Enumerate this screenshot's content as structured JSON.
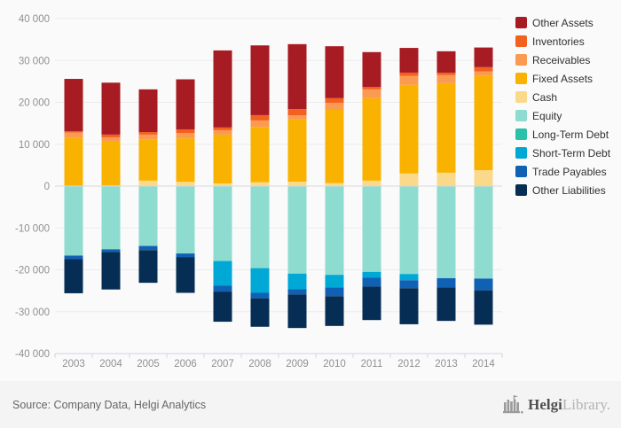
{
  "chart_data": {
    "type": "bar",
    "stacked": true,
    "title": "",
    "xlabel": "",
    "ylabel": "",
    "categories": [
      "2003",
      "2004",
      "2005",
      "2006",
      "2007",
      "2008",
      "2009",
      "2010",
      "2011",
      "2012",
      "2013",
      "2014"
    ],
    "series": [
      {
        "name": "Other Assets",
        "color": "#a71b22",
        "values": [
          12500,
          12400,
          10200,
          11950,
          18400,
          16650,
          15500,
          12400,
          8300,
          5900,
          5100,
          4700
        ]
      },
      {
        "name": "Inventories",
        "color": "#f4601e",
        "values": [
          300,
          650,
          600,
          850,
          640,
          1270,
          1500,
          1100,
          600,
          800,
          600,
          1000
        ]
      },
      {
        "name": "Receivables",
        "color": "#fb9a51",
        "values": [
          1300,
          850,
          1100,
          1300,
          1060,
          1550,
          1000,
          1700,
          2100,
          2100,
          1900,
          1100
        ]
      },
      {
        "name": "Fixed Assets",
        "color": "#f9b200",
        "values": [
          11400,
          10650,
          9900,
          10400,
          11660,
          13220,
          14850,
          17500,
          19700,
          21200,
          21400,
          22500
        ]
      },
      {
        "name": "Cash",
        "color": "#fbd98b",
        "values": [
          100,
          150,
          1300,
          1000,
          640,
          910,
          1050,
          700,
          1300,
          3000,
          3200,
          3800
        ]
      },
      {
        "name": "Equity",
        "color": "#8edcd0",
        "values": [
          -16600,
          -15100,
          -14300,
          -16100,
          -17900,
          -19600,
          -20900,
          -21200,
          -20500,
          -21000,
          -22000,
          -22100
        ]
      },
      {
        "name": "Long-Term Debt",
        "color": "#2bc0a8",
        "values": [
          0,
          0,
          0,
          0,
          0,
          0,
          0,
          0,
          0,
          0,
          0,
          0
        ]
      },
      {
        "name": "Short-Term Debt",
        "color": "#00a8d5",
        "values": [
          0,
          0,
          0,
          0,
          -5900,
          -5900,
          -3700,
          -3000,
          -1400,
          -1500,
          0,
          0
        ]
      },
      {
        "name": "Trade Payables",
        "color": "#1060b4",
        "values": [
          -850,
          -650,
          -1000,
          -850,
          -1400,
          -1300,
          -1300,
          -2100,
          -2100,
          -1900,
          -2200,
          -2800
        ]
      },
      {
        "name": "Other Liabilities",
        "color": "#062e54",
        "values": [
          -8150,
          -8950,
          -7800,
          -8550,
          -7200,
          -6800,
          -8000,
          -7100,
          -8000,
          -8600,
          -8000,
          -8200
        ]
      }
    ],
    "ylim": [
      -40000,
      40000
    ],
    "ytick_values": [
      40000,
      30000,
      20000,
      10000,
      0,
      -10000,
      -20000,
      -30000,
      -40000
    ],
    "ytick_labels": [
      "40 000",
      "30 000",
      "20 000",
      "10 000",
      "0",
      "-10 000",
      "-20 000",
      "-30 000",
      "-40 000"
    ],
    "grid": true,
    "legend_position": "right"
  },
  "colors": {
    "background": "#fafafa",
    "footer_background": "#f4f4f4",
    "gridline": "#ececec",
    "zero_line": "#d8d8d8",
    "axis_line": "#ccd7e2",
    "axis_label": "#909090",
    "legend_text": "#303030"
  },
  "footer": {
    "source": "Source: Company Data, Helgi Analytics",
    "logo_bold": "Helgi",
    "logo_light": "Library."
  }
}
